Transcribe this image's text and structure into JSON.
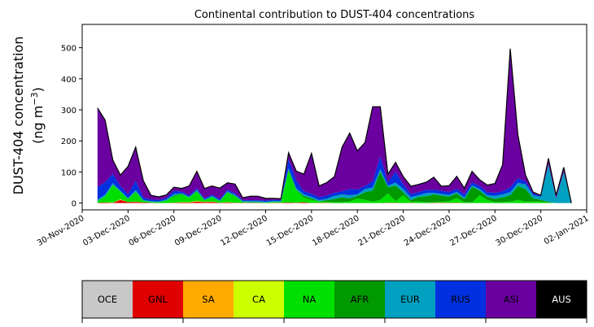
{
  "chart_data": {
    "type": "area",
    "stacked": true,
    "title": "Continental contribution to DUST-404 concentrations",
    "ylabel_line1": "DUST-404 concentration",
    "ylabel_line2_prefix": "(ng m",
    "ylabel_line2_sup": "−3",
    "ylabel_line2_suffix": ")",
    "xlabel": "",
    "xlim": [
      0,
      33
    ],
    "ylim": [
      -22,
      575
    ],
    "yticks": [
      0,
      100,
      200,
      300,
      400,
      500
    ],
    "xticks": [
      {
        "pos": 0,
        "label": "30-Nov-2020"
      },
      {
        "pos": 3,
        "label": "03-Dec-2020"
      },
      {
        "pos": 6,
        "label": "06-Dec-2020"
      },
      {
        "pos": 9,
        "label": "09-Dec-2020"
      },
      {
        "pos": 12,
        "label": "12-Dec-2020"
      },
      {
        "pos": 15,
        "label": "15-Dec-2020"
      },
      {
        "pos": 18,
        "label": "18-Dec-2020"
      },
      {
        "pos": 21,
        "label": "21-Dec-2020"
      },
      {
        "pos": 24,
        "label": "24-Dec-2020"
      },
      {
        "pos": 27,
        "label": "27-Dec-2020"
      },
      {
        "pos": 30,
        "label": "30-Dec-2020"
      },
      {
        "pos": 33,
        "label": "02-Jan-2021"
      }
    ],
    "x": [
      1,
      1.5,
      2,
      2.5,
      3,
      3.5,
      4,
      4.5,
      5,
      5.5,
      6,
      6.5,
      7,
      7.5,
      8,
      8.5,
      9,
      9.5,
      10,
      10.5,
      11,
      11.5,
      12,
      12.5,
      13,
      13.5,
      14,
      14.5,
      15,
      15.5,
      16,
      16.5,
      17,
      17.5,
      18,
      18.5,
      19,
      19.5,
      20,
      20.5,
      21,
      21.5,
      22,
      22.5,
      23,
      23.5,
      24,
      24.5,
      25,
      25.5,
      26,
      26.5,
      27,
      27.5,
      28,
      28.5,
      29,
      29.5,
      30,
      30.5,
      31,
      31.5,
      32
    ],
    "series": [
      {
        "name": "GNL",
        "color": "#e00000",
        "values": [
          1,
          2,
          1,
          10,
          3,
          4,
          2,
          1,
          0,
          0,
          1,
          2,
          2,
          5,
          3,
          4,
          1,
          2,
          1,
          1,
          1,
          1,
          0,
          1,
          1,
          2,
          1,
          3,
          0,
          1,
          1,
          0,
          0,
          0,
          0,
          0,
          0,
          0,
          1,
          1,
          0,
          1,
          0,
          0,
          1,
          1,
          1,
          1,
          0,
          0,
          0,
          0,
          0,
          0,
          0,
          0,
          0,
          0,
          0,
          0,
          0,
          0,
          0
        ]
      },
      {
        "name": "SA",
        "color": "#ffaa00",
        "values": [
          0,
          0,
          0,
          1,
          0,
          0,
          0,
          0,
          0,
          0,
          0,
          0,
          0,
          0,
          0,
          0,
          0,
          0,
          0,
          0,
          0,
          0,
          0,
          0,
          0,
          0,
          0,
          0,
          0,
          0,
          0,
          0,
          0,
          0,
          0,
          0,
          0,
          0,
          0,
          0,
          0,
          0,
          0,
          0,
          0,
          0,
          0,
          0,
          0,
          0,
          0,
          0,
          0,
          0,
          0,
          0,
          0,
          0,
          0,
          0,
          0,
          0,
          0
        ]
      },
      {
        "name": "CA",
        "color": "#ccff00",
        "values": [
          0,
          0,
          1,
          1,
          0,
          1,
          0,
          0,
          0,
          0,
          0,
          1,
          1,
          2,
          1,
          1,
          0,
          1,
          0,
          0,
          0,
          0,
          0,
          0,
          0,
          0,
          0,
          0,
          0,
          0,
          0,
          0,
          0,
          0,
          0,
          0,
          0,
          0,
          0,
          0,
          0,
          0,
          0,
          0,
          0,
          0,
          0,
          0,
          0,
          0,
          0,
          0,
          0,
          0,
          0,
          0,
          0,
          0,
          0,
          0,
          0,
          0,
          0
        ]
      },
      {
        "name": "NA",
        "color": "#00e000",
        "values": [
          5,
          20,
          55,
          25,
          10,
          30,
          5,
          3,
          3,
          8,
          20,
          25,
          15,
          30,
          5,
          15,
          5,
          30,
          20,
          3,
          2,
          2,
          2,
          3,
          3,
          100,
          40,
          15,
          10,
          5,
          3,
          3,
          3,
          5,
          15,
          10,
          5,
          10,
          30,
          5,
          25,
          3,
          5,
          2,
          2,
          3,
          5,
          15,
          3,
          2,
          25,
          10,
          3,
          3,
          5,
          10,
          5,
          5,
          5,
          2,
          0,
          0,
          0
        ]
      },
      {
        "name": "AFR",
        "color": "#009900",
        "values": [
          0,
          0,
          2,
          0,
          0,
          2,
          0,
          0,
          0,
          0,
          3,
          2,
          0,
          2,
          0,
          0,
          0,
          2,
          2,
          0,
          0,
          0,
          0,
          0,
          0,
          5,
          2,
          5,
          5,
          0,
          5,
          10,
          15,
          10,
          8,
          25,
          35,
          90,
          20,
          50,
          10,
          5,
          15,
          20,
          25,
          20,
          15,
          15,
          10,
          50,
          15,
          10,
          10,
          15,
          20,
          45,
          40,
          10,
          5,
          2,
          0,
          0,
          0
        ]
      },
      {
        "name": "EUR",
        "color": "#00a0c0",
        "values": [
          5,
          5,
          5,
          3,
          3,
          5,
          3,
          2,
          2,
          3,
          5,
          2,
          2,
          3,
          2,
          3,
          2,
          3,
          3,
          2,
          3,
          3,
          2,
          3,
          2,
          5,
          5,
          5,
          5,
          3,
          5,
          10,
          10,
          10,
          5,
          10,
          10,
          10,
          5,
          10,
          10,
          10,
          5,
          10,
          5,
          5,
          5,
          5,
          5,
          5,
          5,
          5,
          10,
          10,
          10,
          10,
          15,
          10,
          10,
          120,
          15,
          100,
          0
        ]
      },
      {
        "name": "RUS",
        "color": "#0030e0",
        "values": [
          40,
          40,
          30,
          15,
          12,
          30,
          8,
          5,
          5,
          5,
          10,
          5,
          5,
          5,
          4,
          4,
          5,
          5,
          5,
          3,
          3,
          3,
          4,
          3,
          3,
          30,
          25,
          10,
          10,
          10,
          10,
          10,
          10,
          20,
          15,
          10,
          20,
          40,
          10,
          35,
          15,
          10,
          10,
          10,
          10,
          10,
          10,
          10,
          10,
          10,
          10,
          10,
          10,
          10,
          15,
          15,
          10,
          5,
          3,
          0,
          0,
          0,
          0
        ]
      },
      {
        "name": "ASI",
        "color": "#6a00a0",
        "values": [
          255,
          200,
          45,
          35,
          90,
          108,
          54,
          14,
          10,
          10,
          12,
          10,
          30,
          55,
          32,
          28,
          35,
          22,
          30,
          8,
          13,
          13,
          7,
          5,
          5,
          20,
          30,
          55,
          130,
          36,
          42,
          52,
          142,
          180,
          125,
          140,
          240,
          160,
          27,
          30,
          25,
          25,
          25,
          25,
          40,
          15,
          20,
          40,
          20,
          35,
          20,
          23,
          30,
          85,
          447,
          140,
          20,
          5,
          2,
          20,
          10,
          15,
          0
        ]
      },
      {
        "name": "OCE",
        "color": "#c8c8c8",
        "values": [
          0,
          0,
          0,
          0,
          0,
          0,
          0,
          0,
          0,
          0,
          0,
          0,
          0,
          0,
          0,
          0,
          0,
          0,
          0,
          0,
          0,
          0,
          0,
          0,
          0,
          0,
          0,
          0,
          0,
          0,
          0,
          0,
          0,
          0,
          0,
          0,
          0,
          0,
          0,
          0,
          0,
          0,
          0,
          0,
          0,
          0,
          0,
          0,
          0,
          0,
          0,
          0,
          0,
          0,
          0,
          0,
          0,
          0,
          0,
          0,
          0,
          0,
          0
        ]
      },
      {
        "name": "AUS",
        "color": "#000000",
        "values": [
          0,
          0,
          0,
          0,
          0,
          0,
          0,
          0,
          0,
          0,
          0,
          0,
          0,
          0,
          0,
          0,
          0,
          0,
          0,
          0,
          0,
          0,
          0,
          0,
          0,
          0,
          0,
          0,
          0,
          0,
          0,
          0,
          0,
          0,
          0,
          0,
          0,
          0,
          0,
          0,
          0,
          0,
          0,
          0,
          0,
          0,
          0,
          0,
          0,
          0,
          0,
          0,
          0,
          0,
          0,
          0,
          0,
          0,
          0,
          0,
          0,
          0,
          0
        ]
      }
    ],
    "legend": [
      {
        "label": "OCE",
        "color": "#c8c8c8",
        "text_color": "#000000"
      },
      {
        "label": "GNL",
        "color": "#e00000",
        "text_color": "#000000"
      },
      {
        "label": "SA",
        "color": "#ffaa00",
        "text_color": "#000000"
      },
      {
        "label": "CA",
        "color": "#ccff00",
        "text_color": "#000000"
      },
      {
        "label": "NA",
        "color": "#00e000",
        "text_color": "#000000"
      },
      {
        "label": "AFR",
        "color": "#009900",
        "text_color": "#000000"
      },
      {
        "label": "EUR",
        "color": "#00a0c0",
        "text_color": "#000000"
      },
      {
        "label": "RUS",
        "color": "#0030e0",
        "text_color": "#000000"
      },
      {
        "label": "ASI",
        "color": "#6a00a0",
        "text_color": "#000000"
      },
      {
        "label": "AUS",
        "color": "#000000",
        "text_color": "#ffffff"
      }
    ],
    "grid": false,
    "legend_placement": "bottom colorbar"
  }
}
